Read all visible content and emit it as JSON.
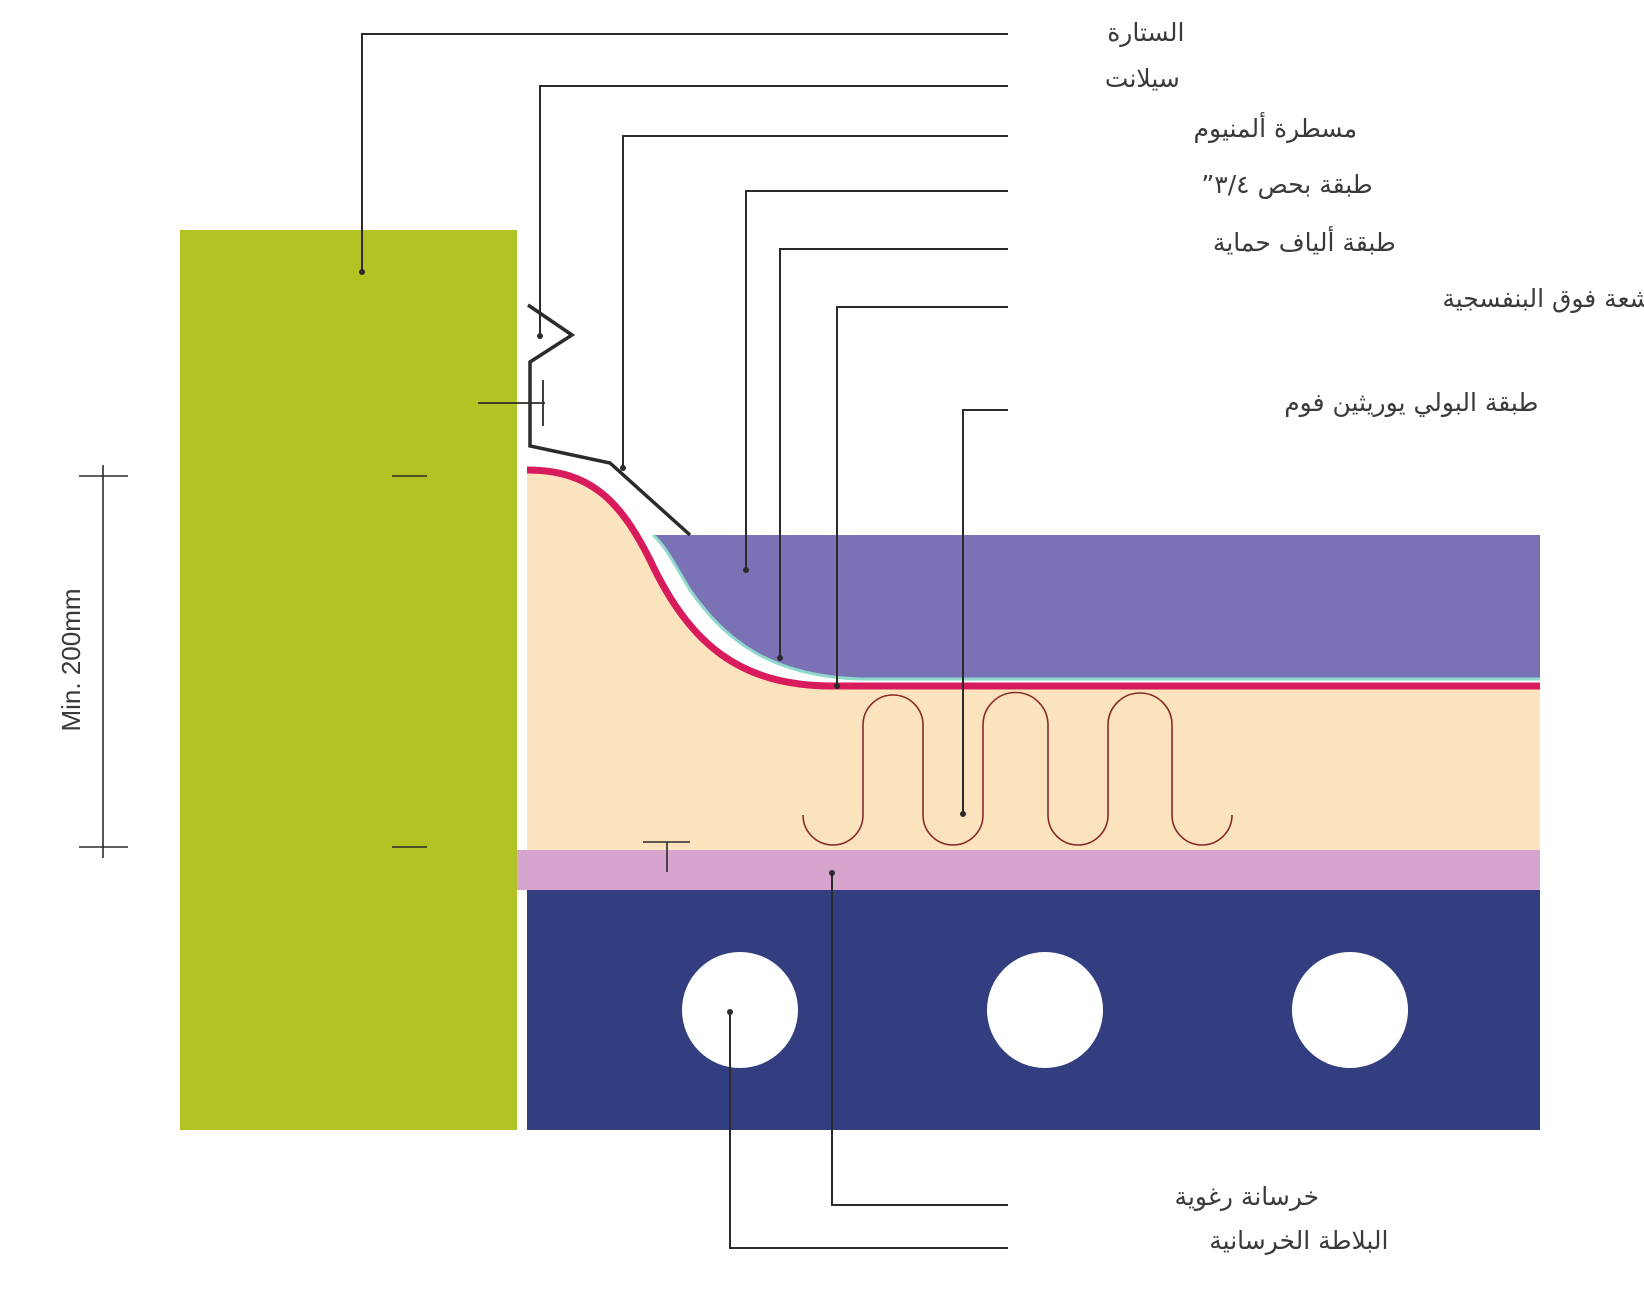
{
  "dimension": {
    "label": "Min. 200mm"
  },
  "labels": {
    "parapet": "الستارة",
    "sealant": "سيلانت",
    "aluminium_flat_bar": "مسطرة ألمنيوم",
    "gravel_layer": "طبقة بحص ٣/٤”",
    "protection_fabric": "طبقة ألياف حماية",
    "uv_protection_layer": "طبقة الحماية من الأشعة فوق البنفسجية",
    "pu_foam_layer": "طبقة البولي يوريثين فوم",
    "foam_concrete": "خرسانة رغوية",
    "concrete_slab": "البلاطة الخرسانية"
  },
  "colors": {
    "parapet": "#b2c424",
    "foam": "#fbe3bd",
    "gravel": "#7a72b5",
    "uv_layer": "#d81b5c",
    "fabric": "#8ed8cc",
    "screed": "#d6a4cd",
    "slab": "#323e80",
    "foam_cells": "#8a2a2a",
    "line": "#2b2b2b"
  }
}
